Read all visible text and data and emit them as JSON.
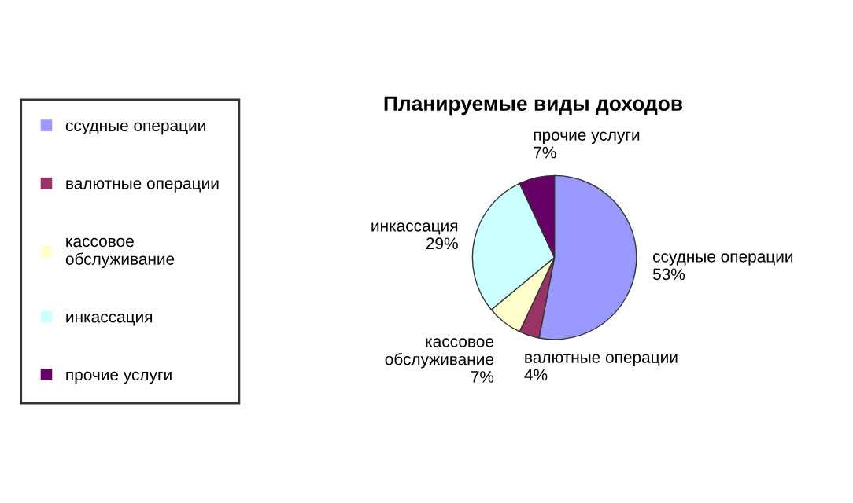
{
  "chart_data": {
    "type": "pie",
    "title": "Планируемые виды доходов",
    "categories": [
      "ссудные операции",
      "валютные операции",
      "кассовое обслуживание",
      "инкассация",
      "прочие услуги"
    ],
    "values": [
      53,
      4,
      7,
      29,
      7
    ],
    "value_labels": [
      "53%",
      "4%",
      "7%",
      "29%",
      "7%"
    ],
    "colors": [
      "#9999ff",
      "#993366",
      "#ffffcc",
      "#ccffff",
      "#660066"
    ],
    "legend": "left"
  }
}
